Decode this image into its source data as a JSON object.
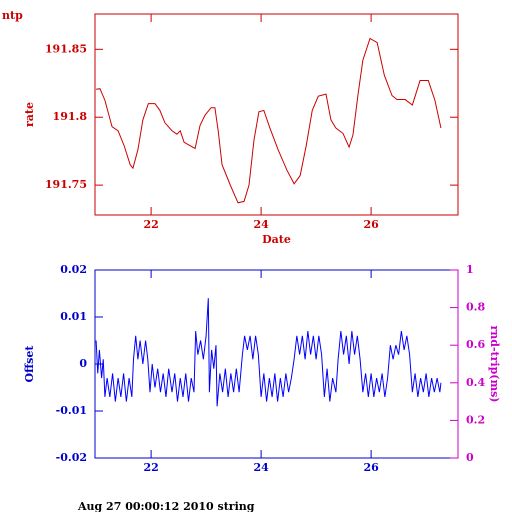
{
  "footer": "Aug 27 00:00:12 2010 string",
  "chart_data": [
    {
      "type": "line",
      "title": "ntp",
      "ylabel": "rate",
      "xlabel": "Date",
      "xlim": [
        20.98,
        27.58
      ],
      "xticks": [
        22,
        24,
        26
      ],
      "ylim": [
        191.728,
        191.876
      ],
      "yticks": [
        191.75,
        191.8,
        191.85
      ],
      "series": [
        {
          "name": "rate",
          "color": "#cc0000",
          "x": [
            21.0,
            21.07,
            21.16,
            21.29,
            21.4,
            21.51,
            21.62,
            21.67,
            21.76,
            21.85,
            21.95,
            22.07,
            22.16,
            22.25,
            22.38,
            22.47,
            22.53,
            22.6,
            22.8,
            22.89,
            22.98,
            23.09,
            23.16,
            23.22,
            23.29,
            23.44,
            23.58,
            23.69,
            23.78,
            23.87,
            23.96,
            24.05,
            24.16,
            24.31,
            24.47,
            24.6,
            24.71,
            24.82,
            24.93,
            25.04,
            25.18,
            25.27,
            25.36,
            25.49,
            25.6,
            25.67,
            25.76,
            25.85,
            25.98,
            26.11,
            26.24,
            26.38,
            26.47,
            26.62,
            26.75,
            26.89,
            27.04,
            27.16,
            27.27
          ],
          "values": [
            191.8206,
            191.821,
            191.8125,
            191.793,
            191.79,
            191.779,
            191.765,
            191.7625,
            191.776,
            191.798,
            191.81,
            191.81,
            191.805,
            191.796,
            191.79,
            191.7875,
            191.79,
            191.7815,
            191.777,
            191.794,
            191.8015,
            191.807,
            191.807,
            191.79,
            191.765,
            191.75,
            191.737,
            191.738,
            191.75,
            191.783,
            191.804,
            191.805,
            191.792,
            191.776,
            191.761,
            191.751,
            191.757,
            191.779,
            191.805,
            191.8155,
            191.817,
            191.798,
            191.792,
            191.788,
            191.778,
            191.787,
            191.816,
            191.842,
            191.858,
            191.855,
            191.831,
            191.816,
            191.813,
            191.813,
            191.809,
            191.827,
            191.827,
            191.8125,
            191.792
          ]
        }
      ]
    },
    {
      "type": "line",
      "ylabel": "Offset",
      "y2label": "rnd-trip(ms)",
      "xlim": [
        20.98,
        27.58
      ],
      "xticks": [
        22,
        24,
        26
      ],
      "ylim": [
        -0.02,
        0.02
      ],
      "yticks": [
        -0.02,
        -0.01,
        0,
        0.01,
        0.02
      ],
      "y2lim": [
        0,
        1
      ],
      "y2ticks": [
        0,
        0.2,
        0.4,
        0.6,
        0.8,
        1
      ],
      "series": [
        {
          "name": "Offset",
          "color": "#0000ff",
          "x": [
            21.0,
            21.03,
            21.06,
            21.1,
            21.13,
            21.16,
            21.2,
            21.25,
            21.3,
            21.35,
            21.4,
            21.45,
            21.5,
            21.55,
            21.6,
            21.65,
            21.68,
            21.72,
            21.76,
            21.8,
            21.85,
            21.9,
            21.94,
            21.98,
            22.02,
            22.07,
            22.12,
            22.17,
            22.22,
            22.27,
            22.32,
            22.38,
            22.43,
            22.48,
            22.53,
            22.58,
            22.63,
            22.68,
            22.73,
            22.78,
            22.81,
            22.85,
            22.9,
            22.95,
            23.0,
            23.04,
            23.06,
            23.1,
            23.14,
            23.18,
            23.2,
            23.25,
            23.3,
            23.35,
            23.4,
            23.45,
            23.5,
            23.55,
            23.6,
            23.66,
            23.7,
            23.75,
            23.8,
            23.85,
            23.9,
            23.95,
            24.0,
            24.05,
            24.1,
            24.15,
            24.2,
            24.25,
            24.3,
            24.35,
            24.4,
            24.45,
            24.5,
            24.55,
            24.6,
            24.65,
            24.7,
            24.75,
            24.8,
            24.85,
            24.9,
            24.95,
            25.0,
            25.05,
            25.1,
            25.15,
            25.2,
            25.25,
            25.3,
            25.36,
            25.4,
            25.45,
            25.5,
            25.55,
            25.6,
            25.65,
            25.7,
            25.75,
            25.8,
            25.85,
            25.9,
            25.95,
            26.0,
            26.05,
            26.1,
            26.15,
            26.2,
            26.25,
            26.3,
            26.35,
            26.4,
            26.45,
            26.5,
            26.55,
            26.6,
            26.65,
            26.7,
            26.75,
            26.8,
            26.85,
            26.9,
            26.95,
            27.0,
            27.05,
            27.1,
            27.15,
            27.2,
            27.25,
            27.27
          ],
          "values": [
            0.005,
            -0.002,
            0.003,
            -0.003,
            0.001,
            -0.007,
            -0.003,
            -0.007,
            -0.002,
            -0.008,
            -0.003,
            -0.007,
            -0.002,
            -0.008,
            -0.003,
            -0.007,
            0.001,
            0.006,
            0.001,
            0.005,
            0.0,
            0.005,
            0.001,
            -0.006,
            0.0,
            -0.005,
            -0.001,
            -0.006,
            -0.002,
            -0.007,
            -0.001,
            -0.006,
            -0.002,
            -0.008,
            -0.003,
            -0.007,
            -0.002,
            -0.008,
            -0.003,
            -0.006,
            0.007,
            0.002,
            0.005,
            0.001,
            0.006,
            0.014,
            -0.006,
            0.003,
            -0.001,
            0.004,
            -0.009,
            -0.002,
            -0.006,
            -0.001,
            -0.007,
            -0.002,
            -0.006,
            -0.001,
            -0.006,
            0.002,
            0.006,
            0.003,
            0.006,
            0.001,
            0.006,
            0.002,
            -0.007,
            -0.002,
            -0.008,
            -0.003,
            -0.007,
            -0.002,
            -0.008,
            -0.003,
            -0.007,
            -0.002,
            -0.006,
            -0.003,
            0.001,
            0.006,
            0.002,
            0.006,
            0.001,
            0.007,
            0.002,
            0.006,
            0.001,
            0.006,
            0.002,
            -0.007,
            -0.001,
            -0.008,
            -0.003,
            -0.006,
            0.001,
            0.007,
            0.002,
            0.006,
            0.0,
            0.007,
            0.002,
            0.006,
            0.001,
            -0.006,
            -0.002,
            -0.007,
            -0.002,
            -0.007,
            -0.003,
            -0.006,
            -0.002,
            -0.007,
            -0.003,
            0.004,
            0.001,
            0.004,
            0.002,
            0.007,
            0.003,
            0.006,
            0.002,
            -0.006,
            -0.002,
            -0.007,
            -0.003,
            -0.006,
            -0.002,
            -0.007,
            -0.003,
            -0.006,
            -0.003,
            -0.006,
            -0.004
          ]
        }
      ]
    }
  ]
}
